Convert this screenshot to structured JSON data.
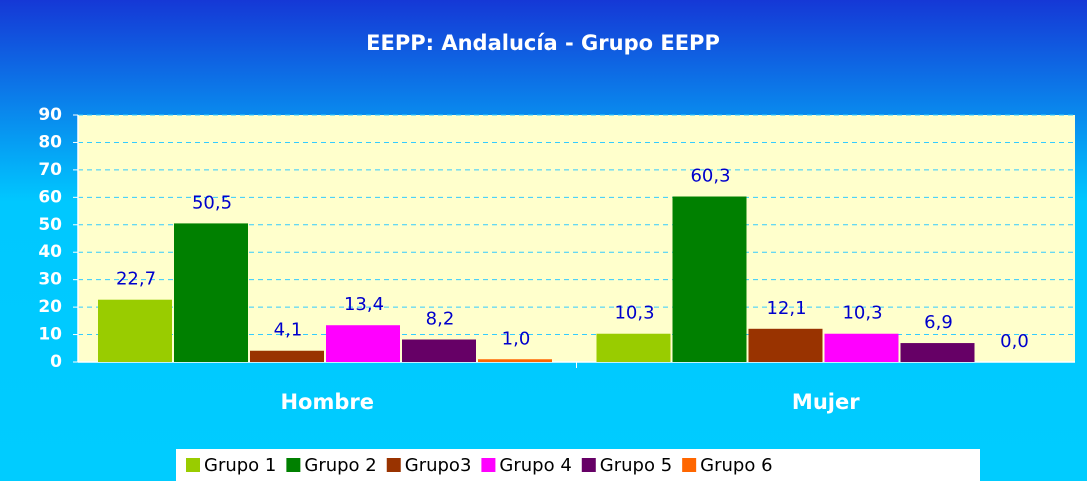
{
  "chart_data": {
    "type": "bar",
    "title": "EEPP: Andalucía - Grupo EEPP",
    "categories": [
      "Hombre",
      "Mujer"
    ],
    "series": [
      {
        "name": "Grupo 1",
        "color": "#99cc00",
        "values": [
          22.7,
          10.3
        ],
        "value_labels": [
          "22,7",
          "10,3"
        ]
      },
      {
        "name": "Grupo 2",
        "color": "#008000",
        "values": [
          50.5,
          60.3
        ],
        "value_labels": [
          "50,5",
          "60,3"
        ]
      },
      {
        "name": "Grupo3",
        "color": "#993300",
        "values": [
          4.1,
          12.1
        ],
        "value_labels": [
          "4,1",
          "12,1"
        ]
      },
      {
        "name": "Grupo 4",
        "color": "#ff00ff",
        "values": [
          13.4,
          10.3
        ],
        "value_labels": [
          "13,4",
          "10,3"
        ]
      },
      {
        "name": "Grupo 5",
        "color": "#660066",
        "values": [
          8.2,
          6.9
        ],
        "value_labels": [
          "8,2",
          "6,9"
        ]
      },
      {
        "name": "Grupo 6",
        "color": "#ff6600",
        "values": [
          1.0,
          0.0
        ],
        "value_labels": [
          "1,0",
          "0,0"
        ]
      }
    ],
    "ylim": [
      0,
      90
    ],
    "yticks": [
      0,
      10,
      20,
      30,
      40,
      50,
      60,
      70,
      80,
      90
    ],
    "grid": true,
    "legend": "bottom"
  }
}
